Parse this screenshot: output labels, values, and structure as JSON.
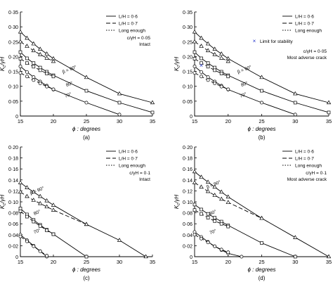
{
  "figure": {
    "panel_captions": [
      "(a)",
      "(b)",
      "(c)",
      "(d)"
    ]
  },
  "legend_entries": [
    "L/H = 0·6",
    "L/H = 0·7",
    "Long enough"
  ],
  "limit_label": "Limit for stability",
  "chart_data": [
    {
      "type": "line",
      "panel": "(a)",
      "xlabel": "ϕ : degrees",
      "ylabel": "K_c/γH",
      "xlim": [
        15,
        35
      ],
      "ylim": [
        0,
        0.35
      ],
      "x_ticks": [
        "15",
        "20",
        "25",
        "30",
        "35"
      ],
      "y_ticks": [
        "0",
        "0·05",
        "0·10",
        "0·15",
        "0·20",
        "0·25",
        "0·30",
        "0·35"
      ],
      "annotations": [
        "c/γH = 0·05",
        "Intact"
      ],
      "curve_labels": [
        {
          "text": "β = 90°",
          "x": 22.5,
          "y": 0.152
        },
        {
          "text": "80°",
          "x": 22.5,
          "y": 0.103
        },
        {
          "text": "70°",
          "x": 22.3,
          "y": 0.066
        }
      ],
      "series": [
        {
          "name": "L/H = 0·6",
          "beta": "90°",
          "marker": "triangle",
          "x": [
            15,
            16,
            17,
            18,
            19,
            20,
            25,
            30,
            35
          ],
          "y": [
            0.283,
            0.262,
            0.243,
            0.225,
            0.209,
            0.193,
            0.13,
            0.075,
            0.045
          ]
        },
        {
          "name": "L/H = 0·7",
          "beta": "90°",
          "marker": "triangle",
          "x": [
            15,
            16,
            17,
            18,
            19,
            20
          ],
          "y": [
            0.25,
            0.235,
            0.22,
            0.207,
            0.195,
            0.184
          ]
        },
        {
          "name": "L/H = 0·6",
          "beta": "80°",
          "marker": "square",
          "x": [
            15,
            16,
            17,
            18,
            19,
            20,
            25,
            30,
            35
          ],
          "y": [
            0.215,
            0.194,
            0.178,
            0.163,
            0.149,
            0.137,
            0.085,
            0.045,
            0.012
          ]
        },
        {
          "name": "L/H = 0·7",
          "beta": "80°",
          "marker": "square",
          "x": [
            15,
            16,
            17,
            18,
            19,
            20
          ],
          "y": [
            0.193,
            0.178,
            0.166,
            0.154,
            0.143,
            0.133
          ]
        },
        {
          "name": "L/H = 0·6",
          "beta": "70°",
          "marker": "circle",
          "x": [
            15,
            16,
            17,
            18,
            19,
            20,
            25,
            30
          ],
          "y": [
            0.167,
            0.148,
            0.131,
            0.116,
            0.102,
            0.089,
            0.045,
            0.005
          ]
        },
        {
          "name": "L/H = 0·7",
          "beta": "70°",
          "marker": "circle",
          "x": [
            15,
            16,
            17,
            18,
            19,
            20
          ],
          "y": [
            0.145,
            0.133,
            0.121,
            0.11,
            0.099,
            0.09
          ]
        }
      ]
    },
    {
      "type": "line",
      "panel": "(b)",
      "xlabel": "ϕ : degrees",
      "ylabel": "K_c/γH",
      "xlim": [
        15,
        35
      ],
      "ylim": [
        0,
        0.35
      ],
      "x_ticks": [
        "15",
        "20",
        "25",
        "30",
        "35"
      ],
      "y_ticks": [
        "0",
        "0·05",
        "0·10",
        "0·15",
        "0·20",
        "0·25",
        "0·30",
        "0·35"
      ],
      "annotations": [
        "c/γH = 0·05",
        "Most adverse crack"
      ],
      "curve_labels": [
        {
          "text": "β = 90°",
          "x": 22.5,
          "y": 0.152
        },
        {
          "text": "80°",
          "x": 22.5,
          "y": 0.103
        },
        {
          "text": "70°",
          "x": 22.3,
          "y": 0.066
        }
      ],
      "limit_points": [
        {
          "x": 16,
          "y": 0.17
        }
      ],
      "series": [
        {
          "name": "L/H = 0·6",
          "beta": "90°",
          "marker": "triangle",
          "x": [
            15,
            16,
            17,
            18,
            19,
            20,
            25,
            30,
            35
          ],
          "y": [
            0.283,
            0.262,
            0.243,
            0.225,
            0.209,
            0.193,
            0.13,
            0.075,
            0.045
          ]
        },
        {
          "name": "L/H = 0·7",
          "beta": "90°",
          "marker": "triangle",
          "x": [
            15,
            16,
            17,
            18,
            19,
            20
          ],
          "y": [
            0.25,
            0.235,
            0.22,
            0.207,
            0.195,
            0.184
          ]
        },
        {
          "name": "L/H = 0·6",
          "beta": "80°",
          "marker": "square",
          "x": [
            15,
            16,
            17,
            18,
            19,
            20,
            25,
            30,
            35
          ],
          "y": [
            0.215,
            0.194,
            0.178,
            0.163,
            0.149,
            0.137,
            0.085,
            0.045,
            0.012
          ]
        },
        {
          "name": "L/H = 0·7",
          "beta": "80°",
          "marker": "square",
          "x": [
            15,
            16,
            17,
            18,
            19,
            20
          ],
          "y": [
            0.193,
            0.178,
            0.166,
            0.154,
            0.143,
            0.133
          ]
        },
        {
          "name": "L/H = 0·6",
          "beta": "70°",
          "marker": "circle",
          "x": [
            15,
            16,
            17,
            18,
            19,
            20,
            25,
            30
          ],
          "y": [
            0.167,
            0.148,
            0.131,
            0.116,
            0.102,
            0.089,
            0.045,
            0.005
          ]
        },
        {
          "name": "L/H = 0·7",
          "beta": "70°",
          "marker": "circle",
          "x": [
            15,
            16,
            17,
            18,
            19,
            20
          ],
          "y": [
            0.145,
            0.133,
            0.121,
            0.11,
            0.099,
            0.09
          ]
        }
      ]
    },
    {
      "type": "line",
      "panel": "(c)",
      "xlabel": "ϕ : degrees",
      "ylabel": "K_c/γH",
      "xlim": [
        15,
        35
      ],
      "ylim": [
        0,
        0.2
      ],
      "x_ticks": [
        "15",
        "20",
        "25",
        "30",
        "35"
      ],
      "y_ticks": [
        "0",
        "0·02",
        "0·04",
        "0·06",
        "0·08",
        "0·10",
        "0·12",
        "0·14",
        "0·16",
        "0·18",
        "0·20"
      ],
      "annotations": [
        "c/γH = 0·1",
        "Intact"
      ],
      "curve_labels": [
        {
          "text": "β = 90°",
          "x": 17.6,
          "y": 0.118
        },
        {
          "text": "80°",
          "x": 17.6,
          "y": 0.078
        },
        {
          "text": "70°",
          "x": 17.6,
          "y": 0.044
        }
      ],
      "series": [
        {
          "name": "L/H = 0·6",
          "beta": "90°",
          "marker": "triangle",
          "x": [
            15,
            16,
            17,
            18,
            19,
            20,
            25,
            30,
            34
          ],
          "y": [
            0.135,
            0.126,
            0.118,
            0.11,
            0.102,
            0.094,
            0.059,
            0.03,
            0.0
          ]
        },
        {
          "name": "L/H = 0·7",
          "beta": "90°",
          "marker": "triangle",
          "x": [
            15,
            16,
            17,
            18,
            19,
            20,
            25
          ],
          "y": [
            0.118,
            0.11,
            0.103,
            0.097,
            0.091,
            0.085,
            0.059
          ]
        },
        {
          "name": "L/H = 0·6",
          "beta": "80°",
          "marker": "square",
          "x": [
            15,
            16,
            17,
            18,
            19,
            20,
            25
          ],
          "y": [
            0.088,
            0.077,
            0.067,
            0.058,
            0.049,
            0.041,
            0.0
          ]
        },
        {
          "name": "L/H = 0·7",
          "beta": "80°",
          "marker": "square",
          "x": [
            15,
            16,
            17,
            18,
            19,
            20
          ],
          "y": [
            0.083,
            0.073,
            0.064,
            0.056,
            0.048,
            0.041
          ]
        },
        {
          "name": "L/H = 0·6",
          "beta": "70°",
          "marker": "circle",
          "x": [
            15,
            16,
            17,
            18,
            19
          ],
          "y": [
            0.04,
            0.03,
            0.02,
            0.01,
            0.0
          ]
        },
        {
          "name": "L/H = 0·7",
          "beta": "70°",
          "marker": "circle",
          "x": [
            15,
            16,
            17,
            18,
            19
          ],
          "y": [
            0.037,
            0.028,
            0.019,
            0.01,
            0.002
          ]
        }
      ]
    },
    {
      "type": "line",
      "panel": "(d)",
      "xlabel": "ϕ : degrees",
      "ylabel": "K_c/γH",
      "xlim": [
        15,
        35
      ],
      "ylim": [
        0,
        0.2
      ],
      "x_ticks": [
        "15",
        "20",
        "25",
        "30",
        "35"
      ],
      "y_ticks": [
        "0",
        "0·02",
        "0·04",
        "0·06",
        "0·08",
        "0·10",
        "0·12",
        "0·14",
        "0·16",
        "0·18",
        "0·20"
      ],
      "annotations": [
        "c/γH = 0·1",
        "Most adverse crack"
      ],
      "curve_labels": [
        {
          "text": "β = 90°",
          "x": 17.9,
          "y": 0.129
        },
        {
          "text": "80°",
          "x": 17.8,
          "y": 0.078
        },
        {
          "text": "70°",
          "x": 17.8,
          "y": 0.043
        }
      ],
      "series": [
        {
          "name": "L/H = 0·6",
          "beta": "90°",
          "marker": "triangle",
          "x": [
            15,
            16,
            17,
            18,
            19,
            20,
            25,
            30,
            35
          ],
          "y": [
            0.155,
            0.145,
            0.136,
            0.127,
            0.118,
            0.109,
            0.07,
            0.035,
            0.0
          ]
        },
        {
          "name": "L/H = 0·7",
          "beta": "90°",
          "marker": "triangle",
          "x": [
            15,
            16,
            17,
            18,
            19,
            20,
            25
          ],
          "y": [
            0.135,
            0.127,
            0.119,
            0.112,
            0.105,
            0.099,
            0.07
          ]
        },
        {
          "name": "L/H = 0·6",
          "beta": "80°",
          "marker": "square",
          "x": [
            15,
            16,
            17,
            18,
            19,
            20,
            25,
            30
          ],
          "y": [
            0.095,
            0.086,
            0.078,
            0.071,
            0.064,
            0.057,
            0.025,
            0.0
          ]
        },
        {
          "name": "L/H = 0·7",
          "beta": "80°",
          "marker": "square",
          "x": [
            15,
            16,
            17,
            18,
            19,
            20
          ],
          "y": [
            0.085,
            0.078,
            0.071,
            0.065,
            0.06,
            0.055
          ]
        },
        {
          "name": "L/H = 0·6",
          "beta": "70°",
          "marker": "circle",
          "x": [
            15,
            16,
            17,
            18,
            19,
            20,
            22
          ],
          "y": [
            0.045,
            0.036,
            0.027,
            0.019,
            0.012,
            0.006,
            0.0
          ]
        },
        {
          "name": "L/H = 0·7",
          "beta": "70°",
          "marker": "circle",
          "x": [
            15,
            16,
            17,
            18,
            19,
            20
          ],
          "y": [
            0.04,
            0.033,
            0.026,
            0.019,
            0.013,
            0.008
          ]
        }
      ]
    }
  ]
}
